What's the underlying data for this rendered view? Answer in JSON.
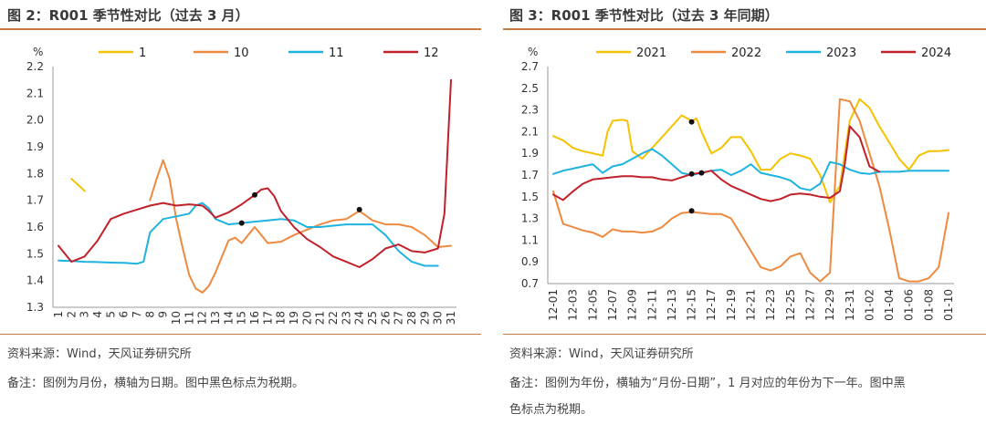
{
  "left": {
    "title": "图 2：R001 季节性对比（过去 3 月）",
    "source": "资料来源：Wind，天风证券研究所",
    "note": "备注：图例为月份，横轴为日期。图中黑色标点为税期。"
  },
  "right": {
    "title": "图 3：R001 季节性对比（过去 3 年同期）",
    "source": "资料来源：Wind，天风证券研究所",
    "note_line1": "备注：图例为年份，横轴为“月份-日期”，1 月对应的年份为下一年。图中黑",
    "note_line2": "色标点为税期。"
  },
  "chart_data": [
    {
      "type": "line",
      "ylabel": "%",
      "ylim": [
        1.3,
        2.2
      ],
      "yticks": [
        "2.2",
        "2.1",
        "2.0",
        "1.9",
        "1.8",
        "1.7",
        "1.6",
        "1.5",
        "1.4",
        "1.3"
      ],
      "categories": [
        "1",
        "2",
        "3",
        "4",
        "5",
        "6",
        "7",
        "8",
        "9",
        "10",
        "11",
        "12",
        "13",
        "14",
        "15",
        "16",
        "17",
        "18",
        "19",
        "20",
        "21",
        "22",
        "23",
        "24",
        "25",
        "26",
        "27",
        "28",
        "29",
        "30",
        "31"
      ],
      "legend_position": "top",
      "series": [
        {
          "name": "1",
          "color": "#f5c200",
          "x": [
            2,
            3
          ],
          "y": [
            1.78,
            1.735
          ]
        },
        {
          "name": "10",
          "color": "#ee8a40",
          "x": [
            8,
            8.5,
            9,
            9.5,
            10,
            10.5,
            11,
            11.5,
            12,
            12.5,
            13,
            13.5,
            14,
            14.5,
            15,
            15.5,
            16,
            16.5,
            17,
            18,
            19,
            20,
            21,
            22,
            23,
            24,
            25,
            26,
            27,
            28,
            29,
            30,
            31
          ],
          "y": [
            1.7,
            1.78,
            1.85,
            1.78,
            1.63,
            1.52,
            1.42,
            1.37,
            1.355,
            1.38,
            1.43,
            1.49,
            1.55,
            1.56,
            1.54,
            1.57,
            1.6,
            1.57,
            1.54,
            1.545,
            1.57,
            1.59,
            1.61,
            1.625,
            1.63,
            1.66,
            1.625,
            1.61,
            1.61,
            1.6,
            1.57,
            1.525,
            1.53
          ]
        },
        {
          "name": "11",
          "color": "#1fb3e0",
          "x": [
            1,
            2,
            3,
            4,
            5,
            6,
            7,
            7.5,
            8,
            9,
            10,
            11,
            11.5,
            12,
            12.5,
            13,
            14,
            15,
            16,
            17,
            18,
            19,
            20,
            21,
            22,
            23,
            24,
            25,
            26,
            27,
            28,
            29,
            30
          ],
          "y": [
            1.475,
            1.473,
            1.47,
            1.469,
            1.467,
            1.466,
            1.463,
            1.47,
            1.58,
            1.63,
            1.64,
            1.65,
            1.68,
            1.69,
            1.67,
            1.63,
            1.61,
            1.615,
            1.62,
            1.625,
            1.63,
            1.625,
            1.6,
            1.6,
            1.605,
            1.61,
            1.61,
            1.61,
            1.57,
            1.51,
            1.47,
            1.455,
            1.455
          ]
        },
        {
          "name": "12",
          "color": "#c0212a",
          "x": [
            1,
            2,
            3,
            4,
            5,
            6,
            7,
            8,
            9,
            10,
            11,
            12,
            12.5,
            13,
            14,
            15,
            16,
            16.5,
            17,
            17.5,
            18,
            19,
            20,
            21,
            22,
            23,
            24,
            25,
            26,
            27,
            28,
            29,
            30,
            30.5,
            31
          ],
          "y": [
            1.53,
            1.47,
            1.49,
            1.55,
            1.63,
            1.65,
            1.665,
            1.68,
            1.69,
            1.68,
            1.685,
            1.68,
            1.66,
            1.635,
            1.655,
            1.685,
            1.72,
            1.74,
            1.745,
            1.715,
            1.66,
            1.6,
            1.555,
            1.525,
            1.49,
            1.47,
            1.45,
            1.48,
            1.52,
            1.535,
            1.51,
            1.505,
            1.52,
            1.65,
            2.15
          ]
        }
      ],
      "tax_points": [
        {
          "x": 15,
          "y": 1.615
        },
        {
          "x": 16,
          "y": 1.72
        },
        {
          "x": 24,
          "y": 1.665
        }
      ]
    },
    {
      "type": "line",
      "ylabel": "%",
      "ylim": [
        0.7,
        2.7
      ],
      "yticks": [
        "2.7",
        "2.5",
        "2.3",
        "2.1",
        "1.9",
        "1.7",
        "1.5",
        "1.3",
        "1.1",
        "0.9",
        "0.7"
      ],
      "categories": [
        "12-01",
        "12-03",
        "12-05",
        "12-07",
        "12-09",
        "12-11",
        "12-13",
        "12-15",
        "12-17",
        "12-19",
        "12-21",
        "12-23",
        "12-25",
        "12-27",
        "12-29",
        "12-31",
        "01-02",
        "01-04",
        "01-06",
        "01-08",
        "01-10"
      ],
      "legend_position": "top",
      "series": [
        {
          "name": "2021",
          "color": "#f5c200",
          "x": [
            1,
            2,
            3,
            4,
            5,
            6,
            6.5,
            7,
            8,
            8.5,
            9,
            10,
            11,
            12,
            13,
            14,
            15,
            15.5,
            16,
            17,
            18,
            19,
            20,
            21,
            22,
            23,
            24,
            25,
            26,
            27,
            28,
            29,
            30,
            31,
            32,
            33,
            34,
            35,
            36,
            37,
            38,
            39,
            40,
            41
          ],
          "y": [
            2.06,
            2.02,
            1.95,
            1.92,
            1.9,
            1.88,
            2.1,
            2.2,
            2.21,
            2.2,
            1.92,
            1.85,
            1.95,
            2.05,
            2.15,
            2.25,
            2.2,
            2.22,
            2.1,
            1.9,
            1.95,
            2.05,
            2.05,
            1.92,
            1.75,
            1.75,
            1.85,
            1.9,
            1.88,
            1.85,
            1.7,
            1.45,
            1.6,
            2.2,
            2.4,
            2.32,
            2.15,
            2.0,
            1.85,
            1.75,
            1.88,
            1.92,
            1.92,
            1.93
          ]
        },
        {
          "name": "2022",
          "color": "#ee8a40",
          "x": [
            1,
            2,
            3,
            4,
            5,
            6,
            7,
            8,
            9,
            10,
            11,
            12,
            13,
            14,
            15,
            16,
            17,
            18,
            19,
            20,
            21,
            22,
            23,
            24,
            25,
            26,
            27,
            28,
            29,
            29.5,
            30,
            31,
            32,
            33,
            34,
            35,
            36,
            37,
            38,
            39,
            40,
            41
          ],
          "y": [
            1.55,
            1.25,
            1.22,
            1.19,
            1.17,
            1.13,
            1.2,
            1.18,
            1.18,
            1.17,
            1.18,
            1.22,
            1.3,
            1.35,
            1.36,
            1.35,
            1.34,
            1.34,
            1.3,
            1.15,
            1.0,
            0.85,
            0.82,
            0.86,
            0.95,
            0.98,
            0.8,
            0.72,
            0.8,
            1.6,
            2.4,
            2.38,
            2.2,
            1.9,
            1.6,
            1.2,
            0.75,
            0.72,
            0.72,
            0.75,
            0.85,
            1.35
          ]
        },
        {
          "name": "2023",
          "color": "#1fb3e0",
          "x": [
            1,
            2,
            3,
            4,
            5,
            6,
            7,
            8,
            9,
            10,
            11,
            12,
            13,
            14,
            15,
            16,
            17,
            18,
            19,
            20,
            21,
            22,
            23,
            24,
            25,
            26,
            27,
            28,
            29,
            30,
            31,
            32,
            33,
            34,
            35,
            36,
            37,
            38,
            39,
            40,
            41
          ],
          "y": [
            1.71,
            1.74,
            1.76,
            1.78,
            1.8,
            1.72,
            1.78,
            1.8,
            1.85,
            1.9,
            1.94,
            1.88,
            1.8,
            1.72,
            1.7,
            1.72,
            1.74,
            1.75,
            1.7,
            1.74,
            1.8,
            1.72,
            1.7,
            1.68,
            1.65,
            1.58,
            1.56,
            1.62,
            1.82,
            1.8,
            1.75,
            1.72,
            1.71,
            1.73,
            1.73,
            1.73,
            1.74,
            1.74,
            1.74,
            1.74,
            1.74
          ]
        },
        {
          "name": "2024",
          "color": "#c0212a",
          "x": [
            1,
            2,
            3,
            4,
            5,
            6,
            7,
            8,
            9,
            10,
            11,
            12,
            13,
            14,
            15,
            16,
            17,
            18,
            19,
            20,
            21,
            22,
            23,
            24,
            25,
            26,
            27,
            28,
            29,
            30,
            30.5,
            31,
            32,
            33,
            34
          ],
          "y": [
            1.52,
            1.47,
            1.55,
            1.62,
            1.66,
            1.67,
            1.68,
            1.69,
            1.69,
            1.68,
            1.68,
            1.66,
            1.65,
            1.68,
            1.71,
            1.72,
            1.74,
            1.66,
            1.6,
            1.56,
            1.52,
            1.48,
            1.46,
            1.48,
            1.52,
            1.53,
            1.52,
            1.5,
            1.49,
            1.55,
            1.8,
            2.15,
            2.05,
            1.78,
            1.73
          ]
        }
      ],
      "tax_points": [
        {
          "x": 15,
          "y": 2.19
        },
        {
          "x": 15,
          "y": 1.71
        },
        {
          "x": 16,
          "y": 1.72
        },
        {
          "x": 15,
          "y": 1.37
        }
      ]
    }
  ]
}
